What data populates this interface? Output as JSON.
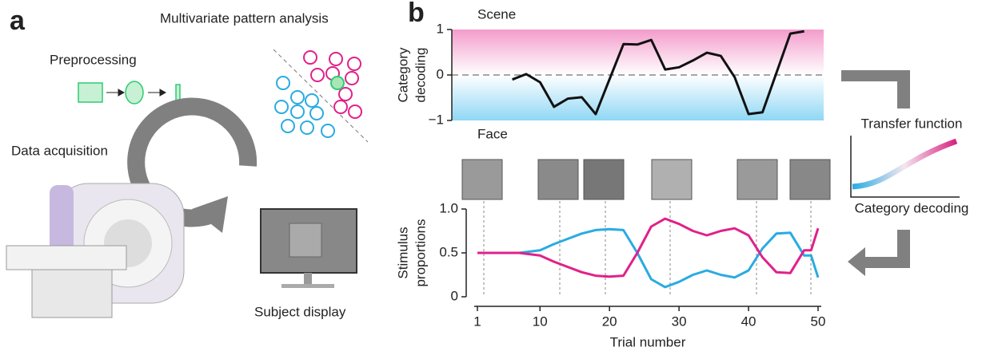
{
  "panel_a": {
    "label": "a",
    "mvpa": "Multivariate pattern analysis",
    "preprocessing": "Preprocessing",
    "acquisition": "Data acquisition",
    "display": "Subject display"
  },
  "panel_b": {
    "label": "b",
    "transfer_title": "Transfer function",
    "transfer_xlabel": "Category decoding"
  },
  "chart_data": [
    {
      "type": "line",
      "ylabel": [
        "Category",
        "decoding"
      ],
      "annotations": [
        {
          "text": "Scene",
          "color": "#e6338f"
        },
        {
          "text": "Face",
          "color": "#29abe2"
        }
      ],
      "band_colors": [
        "#f39ccb",
        "#ffffff",
        "#8fd7f5"
      ],
      "zero_line": true,
      "x": [
        6,
        8,
        10,
        12,
        14,
        16,
        18,
        22,
        24,
        26,
        28,
        30,
        32,
        34,
        36,
        38,
        40,
        42,
        46,
        48
      ],
      "series": [
        {
          "color": "#111111",
          "values": [
            -0.1,
            0.02,
            -0.16,
            -0.7,
            -0.52,
            -0.49,
            -0.86,
            0.68,
            0.67,
            0.77,
            0.12,
            0.17,
            0.32,
            0.49,
            0.42,
            -0.05,
            -0.86,
            -0.82,
            0.91,
            0.96
          ]
        }
      ],
      "xlim": [
        -2.7,
        50.8
      ],
      "ylim": [
        -1,
        1
      ],
      "yticks": [
        {
          "value": -1,
          "label": "−1"
        },
        0,
        1
      ]
    },
    {
      "type": "line",
      "ylabel": [
        "Stimulus",
        "proportions"
      ],
      "xlabel": "Trial number",
      "x": [
        1,
        7,
        10,
        12,
        14,
        16,
        18,
        20,
        22,
        24,
        26,
        28,
        30,
        32,
        34,
        36,
        38,
        40,
        42,
        44,
        46,
        48,
        49,
        50
      ],
      "series": [
        {
          "color": "#29abe2",
          "values": [
            0.5,
            0.5,
            0.53,
            0.6,
            0.66,
            0.72,
            0.76,
            0.77,
            0.76,
            0.5,
            0.2,
            0.11,
            0.17,
            0.25,
            0.3,
            0.25,
            0.22,
            0.3,
            0.55,
            0.72,
            0.73,
            0.47,
            0.47,
            0.22
          ]
        },
        {
          "color": "#e0218a",
          "values": [
            0.5,
            0.5,
            0.47,
            0.4,
            0.34,
            0.28,
            0.24,
            0.23,
            0.24,
            0.5,
            0.8,
            0.89,
            0.83,
            0.75,
            0.7,
            0.75,
            0.78,
            0.7,
            0.45,
            0.28,
            0.27,
            0.53,
            0.53,
            0.78
          ]
        }
      ],
      "xlim": [
        1,
        50
      ],
      "ylim": [
        0,
        1
      ],
      "xticks": [
        1,
        10,
        20,
        30,
        40,
        50
      ],
      "yticks": [
        0,
        0.5,
        {
          "value": 1,
          "label": "1.0"
        }
      ]
    }
  ]
}
